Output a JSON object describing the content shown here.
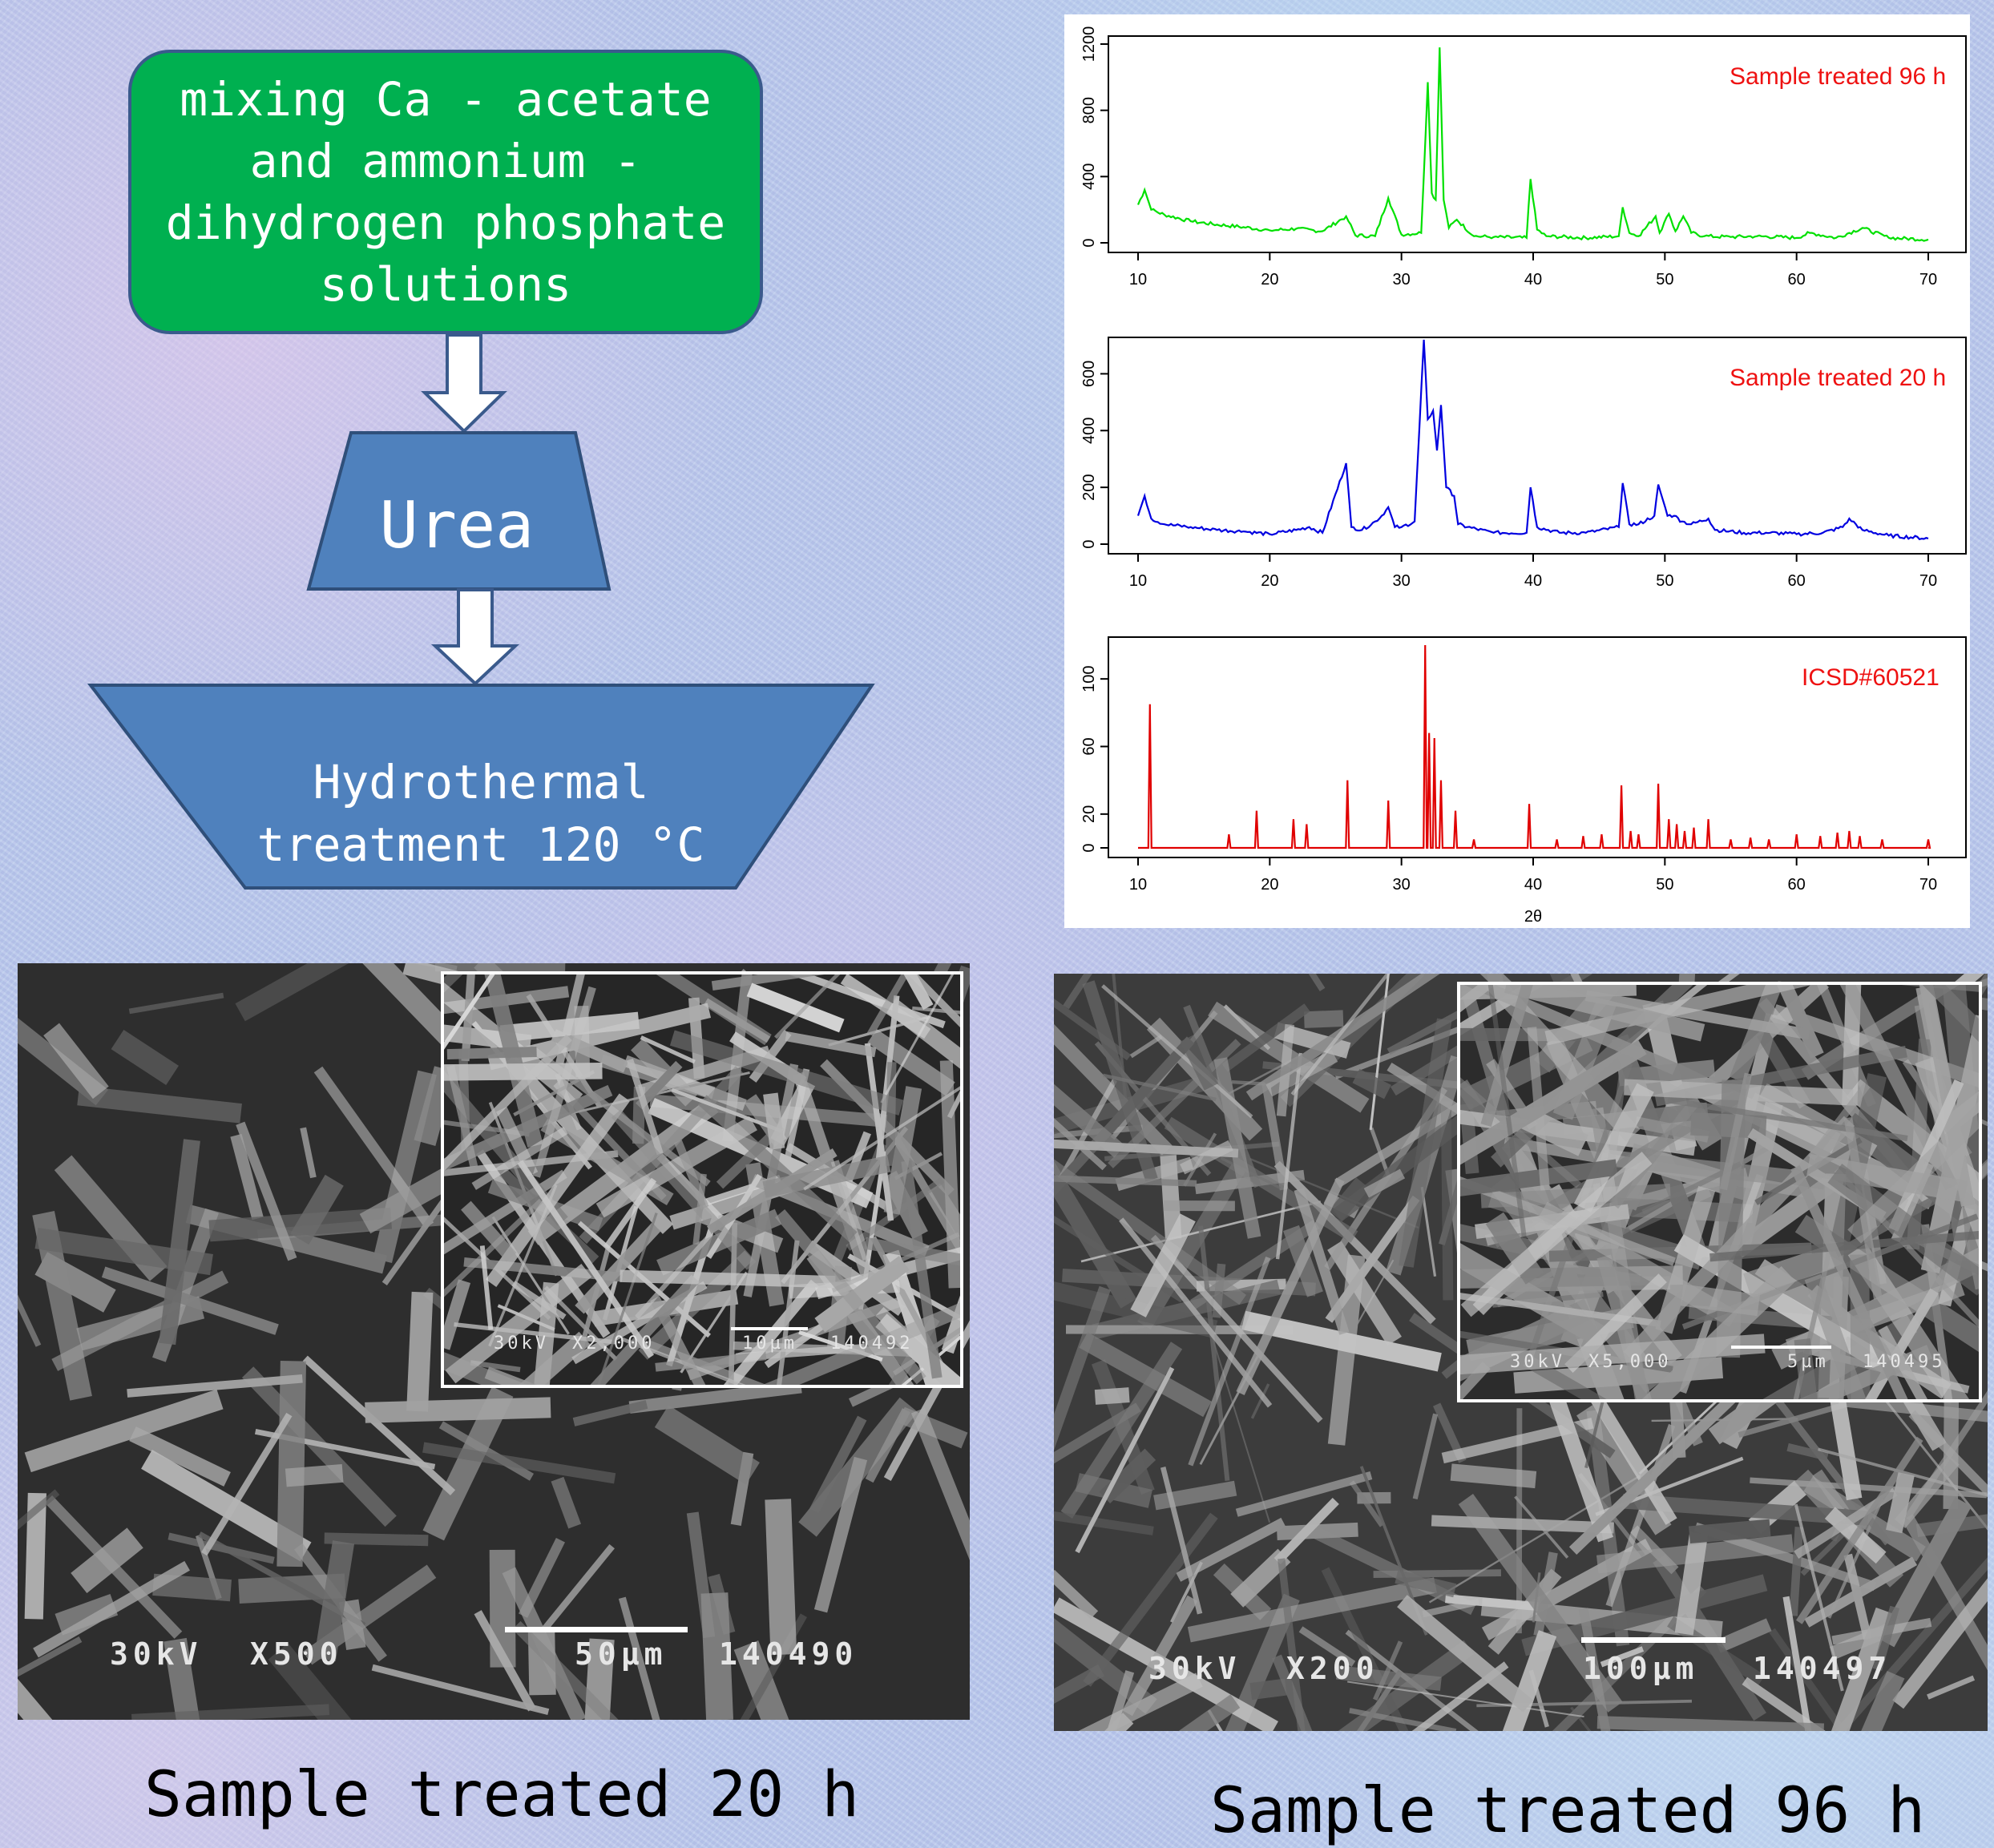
{
  "flow": {
    "step1": "mixing Ca - acetate\nand ammonium -\ndihydrogen phosphate\nsolutions",
    "step2": "Urea",
    "step3": "Hydrothermal\ntreatment 120 °C"
  },
  "chart_data": [
    {
      "type": "line",
      "series": [
        {
          "name": "Sample treated 96 h",
          "color": "#00e000",
          "x": [
            10,
            10.5,
            11,
            12,
            14,
            16,
            18,
            20,
            22,
            24,
            25.8,
            26.5,
            28,
            29,
            30,
            31.5,
            32,
            32.3,
            32.6,
            32.9,
            33.2,
            33.6,
            34.2,
            35.5,
            37,
            39.5,
            39.8,
            40.3,
            41,
            44,
            46.5,
            46.8,
            47.3,
            48,
            49.3,
            49.6,
            50.3,
            50.8,
            51.4,
            52,
            53,
            55,
            57,
            60,
            61,
            63,
            64,
            65,
            67,
            70
          ],
          "y": [
            230,
            320,
            200,
            170,
            130,
            110,
            95,
            75,
            85,
            70,
            160,
            45,
            40,
            270,
            50,
            60,
            970,
            300,
            260,
            1180,
            260,
            90,
            140,
            40,
            35,
            30,
            385,
            80,
            40,
            30,
            40,
            215,
            60,
            40,
            160,
            60,
            175,
            70,
            160,
            60,
            40,
            35,
            40,
            30,
            60,
            30,
            60,
            90,
            30,
            20
          ]
        }
      ],
      "legend": "Sample treated 96 h",
      "xlim": [
        10,
        70
      ],
      "ylim": [
        0,
        1200
      ],
      "xticks": [
        "10",
        "20",
        "30",
        "40",
        "50",
        "60",
        "70"
      ],
      "yticks": [
        "0",
        "400",
        "800",
        "1200"
      ]
    },
    {
      "type": "line",
      "series": [
        {
          "name": "Sample treated 20 h",
          "color": "#0000e0",
          "x": [
            10,
            10.5,
            11,
            12,
            14,
            16,
            18,
            20,
            22,
            23,
            24,
            25.8,
            26.2,
            27,
            28,
            28.5,
            29,
            29.5,
            30,
            31,
            31.7,
            32,
            32.4,
            32.7,
            33,
            33.4,
            34,
            34.3,
            35,
            37,
            39.5,
            39.8,
            40.3,
            42,
            44,
            46.5,
            46.8,
            47.3,
            48,
            49.2,
            49.5,
            50.2,
            50.7,
            51.3,
            52,
            53.3,
            53.8,
            56,
            58,
            60,
            62,
            63.5,
            64,
            65,
            67,
            70
          ],
          "y": [
            100,
            170,
            90,
            70,
            60,
            50,
            45,
            35,
            50,
            60,
            40,
            285,
            60,
            50,
            80,
            100,
            130,
            60,
            60,
            80,
            720,
            440,
            470,
            330,
            490,
            200,
            170,
            70,
            60,
            40,
            40,
            200,
            60,
            40,
            40,
            60,
            215,
            70,
            70,
            100,
            210,
            100,
            100,
            80,
            70,
            90,
            50,
            40,
            40,
            35,
            40,
            60,
            90,
            50,
            30,
            20
          ]
        }
      ],
      "legend": "Sample treated 20 h",
      "xlim": [
        10,
        70
      ],
      "ylim": [
        0,
        700
      ],
      "xticks": [
        "10",
        "20",
        "30",
        "40",
        "50",
        "60",
        "70"
      ],
      "yticks": [
        "0",
        "200",
        "400",
        "600"
      ]
    },
    {
      "type": "line",
      "series": [
        {
          "name": "ICSD#60521",
          "color": "#e00000",
          "peaks": [
            [
              10.9,
              85
            ],
            [
              16.9,
              8
            ],
            [
              19.0,
              22
            ],
            [
              21.8,
              17
            ],
            [
              22.8,
              14
            ],
            [
              25.9,
              40
            ],
            [
              29.0,
              28
            ],
            [
              31.8,
              120
            ],
            [
              32.1,
              68
            ],
            [
              32.5,
              65
            ],
            [
              33.0,
              40
            ],
            [
              34.1,
              22
            ],
            [
              35.5,
              5
            ],
            [
              39.7,
              26
            ],
            [
              41.8,
              5
            ],
            [
              43.8,
              7
            ],
            [
              45.2,
              8
            ],
            [
              46.7,
              37
            ],
            [
              47.4,
              10
            ],
            [
              48.0,
              8
            ],
            [
              49.5,
              38
            ],
            [
              50.3,
              17
            ],
            [
              50.9,
              14
            ],
            [
              51.5,
              10
            ],
            [
              52.2,
              12
            ],
            [
              53.3,
              17
            ],
            [
              55.0,
              5
            ],
            [
              56.5,
              6
            ],
            [
              57.9,
              5
            ],
            [
              60.0,
              8
            ],
            [
              61.8,
              7
            ],
            [
              63.1,
              9
            ],
            [
              64.0,
              10
            ],
            [
              64.8,
              7
            ],
            [
              66.5,
              5
            ],
            [
              70.0,
              5
            ]
          ]
        }
      ],
      "legend": "ICSD#60521",
      "xlabel": "2θ",
      "xlim": [
        10,
        70
      ],
      "ylim": [
        0,
        120
      ],
      "xticks": [
        "10",
        "20",
        "30",
        "40",
        "50",
        "60",
        "70"
      ],
      "yticks": [
        "0",
        "20",
        "60",
        "100"
      ]
    }
  ],
  "sem_left": {
    "kv": "30kV",
    "mag": "X500",
    "scale": "50µm",
    "id": "140490",
    "inset": {
      "kv": "30kV",
      "mag": "X2,000",
      "scale": "10µm",
      "id": "140492"
    }
  },
  "sem_right": {
    "kv": "30kV",
    "mag": "X200",
    "scale": "100µm",
    "id": "140497",
    "inset": {
      "kv": "30kV",
      "mag": "X5,000",
      "scale": "5µm",
      "id": "140495"
    }
  },
  "captions": {
    "left": "Sample treated 20 h",
    "right": "Sample treated 96 h"
  }
}
